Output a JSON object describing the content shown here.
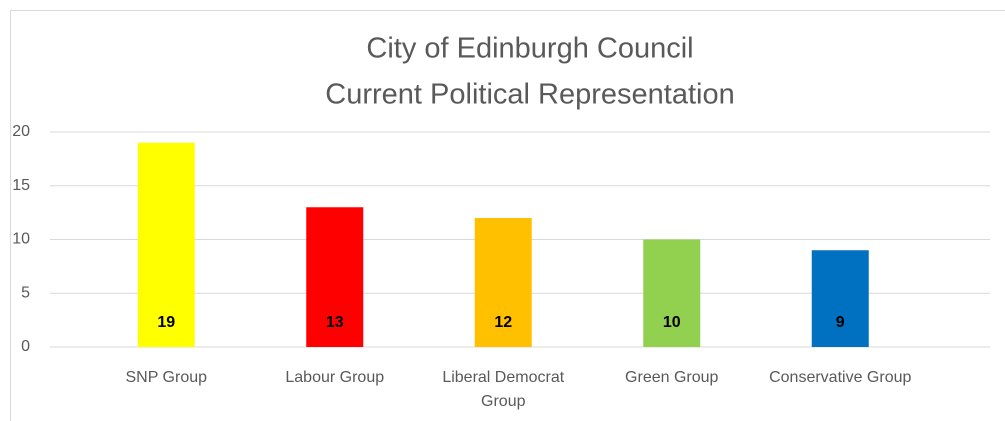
{
  "chart_data": {
    "type": "bar",
    "title": [
      "City of Edinburgh Council",
      "Current Political Representation"
    ],
    "categories": [
      "SNP Group",
      "Labour Group",
      "Liberal Democrat Group",
      "Green Group",
      "Conservative Group"
    ],
    "values": [
      19,
      13,
      12,
      10,
      9
    ],
    "colors": [
      "#ffff00",
      "#ff0000",
      "#ffc000",
      "#92d050",
      "#0070c0"
    ],
    "ylim": [
      0,
      20
    ],
    "yticks": [
      0,
      5,
      10,
      15,
      20
    ],
    "grid": true,
    "data_labels": true
  }
}
